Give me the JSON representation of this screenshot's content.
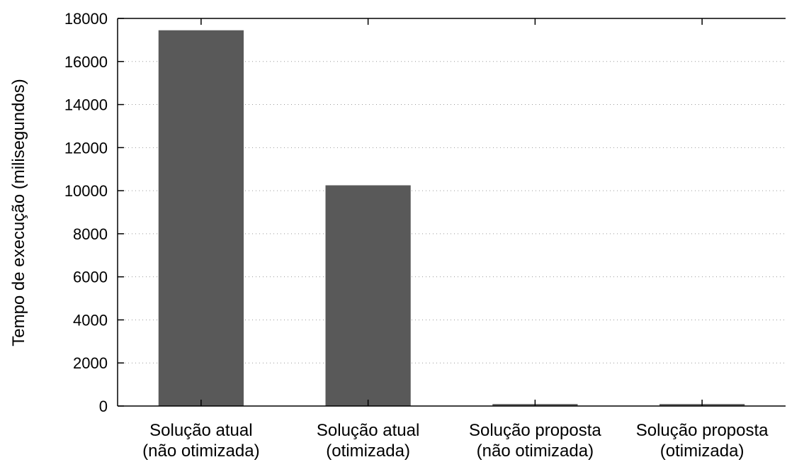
{
  "chart_data": {
    "type": "bar",
    "title": "",
    "xlabel": "",
    "ylabel": "Tempo de execução (milisegundos)",
    "ylim": [
      0,
      18000
    ],
    "yticks": [
      0,
      2000,
      4000,
      6000,
      8000,
      10000,
      12000,
      14000,
      16000,
      18000
    ],
    "grid": true,
    "legend": "none",
    "categories": [
      [
        "Solução atual",
        "(não otimizada)"
      ],
      [
        "Solução atual",
        "(otimizada)"
      ],
      [
        "Solução proposta",
        "(não otimizada)"
      ],
      [
        "Solução proposta",
        "(otimizada)"
      ]
    ],
    "values": [
      17450,
      10250,
      90,
      90
    ],
    "bar_color": "#595959"
  }
}
